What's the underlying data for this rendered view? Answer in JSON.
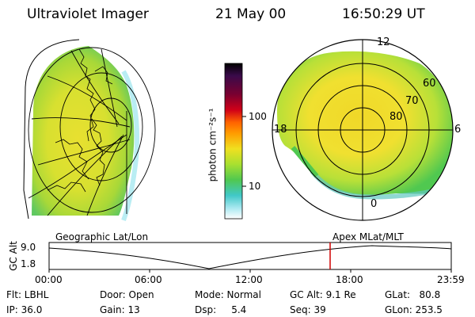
{
  "header": {
    "instrument": "Ultraviolet Imager",
    "date": "21 May 00",
    "time": "16:50:29 UT"
  },
  "colorbar": {
    "label": "photon cm⁻²s⁻¹",
    "ticks": [
      "100",
      "10"
    ],
    "scale": "log",
    "colors": [
      "#000000",
      "#3a0a4a",
      "#7a0030",
      "#d00018",
      "#ff6400",
      "#ff9c00",
      "#f0e020",
      "#a8e030",
      "#50c850",
      "#40c8c8",
      "#a8e8f0",
      "#ffffff"
    ]
  },
  "left_panel": {
    "caption": "Geographic Lat/Lon"
  },
  "right_panel": {
    "caption": "Apex MLat/MLT",
    "mlt_labels": {
      "top": "12",
      "left": "18",
      "right": "6",
      "bottom": "0"
    },
    "lat_labels": [
      "60",
      "70",
      "80"
    ]
  },
  "timeline": {
    "axis_label": "GC Alt",
    "y_ticks": [
      "9.0",
      "1.8"
    ],
    "x_ticks": [
      "00:00",
      "06:00",
      "12:00",
      "18:00",
      "23:59"
    ],
    "current_marker_color": "#d00000"
  },
  "status": {
    "flt": "Flt: LBHL",
    "ip": "IP: 36.0",
    "door": "Door: Open",
    "gain": "Gain: 13",
    "mode": "Mode: Normal",
    "dsp": "Dsp:     5.4",
    "gc_alt": "GC Alt: 9.1 Re",
    "seq": "Seq: 39",
    "glat": "GLat:   80.8",
    "glon": "GLon: 253.5"
  }
}
